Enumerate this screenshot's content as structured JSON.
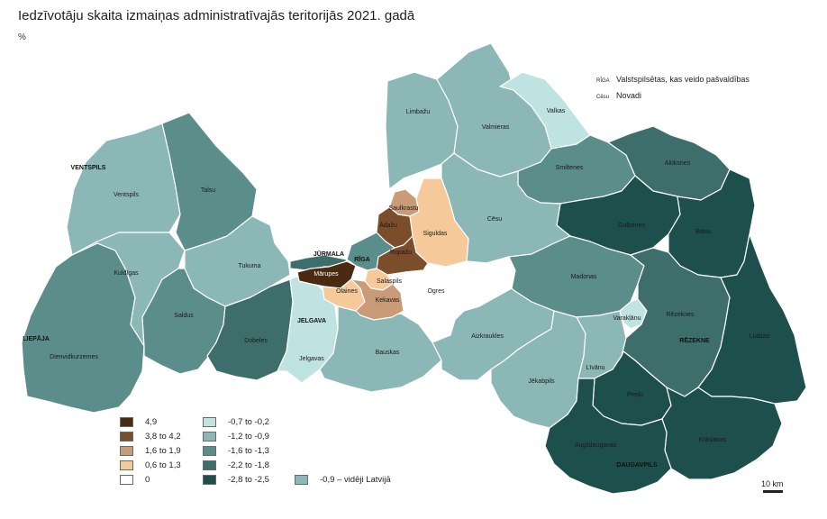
{
  "title": "Iedzīvotāju skaita izmaiņas administratīvajās teritorijās 2021. gadā",
  "unit": "%",
  "key": {
    "city_example": "RĪGA",
    "city_desc": "Valstspilsētas, kas veido pašvaldības",
    "region_example": "Cēsu",
    "region_desc": "Novadi"
  },
  "colors": {
    "c1": "#4b2a12",
    "c2": "#7b4d2a",
    "c3": "#c99b77",
    "c4": "#f5c99a",
    "c5": "#ffffff",
    "c6": "#bfe3e1",
    "c7": "#8bb8b6",
    "c8": "#5b8d8a",
    "c9": "#3e6e6b",
    "c10": "#1d4f4d",
    "avg": "#8bb8b6"
  },
  "legend": [
    {
      "label": "4,9",
      "color": "#4b2a12"
    },
    {
      "label": "3,8 to 4,2",
      "color": "#7b4d2a"
    },
    {
      "label": "1,6 to 1,9",
      "color": "#c99b77"
    },
    {
      "label": "0,6 to 1,3",
      "color": "#f5c99a"
    },
    {
      "label": "0",
      "color": "#ffffff"
    },
    {
      "label": "-0,7 to -0,2",
      "color": "#bfe3e1"
    },
    {
      "label": "-1,2 to -0,9",
      "color": "#8bb8b6"
    },
    {
      "label": "-1,6 to -1,3",
      "color": "#5b8d8a"
    },
    {
      "label": "-2,2 to -1,8",
      "color": "#3e6e6b"
    },
    {
      "label": "-2,8 to -2,5",
      "color": "#1d4f4d"
    },
    {
      "label": "-0,9 – vidēji Latvijā",
      "color": "#8bb8b6"
    }
  ],
  "regions": [
    {
      "name": "Ventspils"
    },
    {
      "name": "Talsu"
    },
    {
      "name": "Kuldīgas"
    },
    {
      "name": "Tukuma"
    },
    {
      "name": "Saldus"
    },
    {
      "name": "Dienvidkurzemes"
    },
    {
      "name": "Dobeles"
    },
    {
      "name": "Jelgavas"
    },
    {
      "name": "Bauskas"
    },
    {
      "name": "Limbažu"
    },
    {
      "name": "Valmieras"
    },
    {
      "name": "Valkas"
    },
    {
      "name": "Smiltenes"
    },
    {
      "name": "Alūksnes"
    },
    {
      "name": "Gulbenes"
    },
    {
      "name": "Balvu"
    },
    {
      "name": "Cēsu"
    },
    {
      "name": "Saulkrastu"
    },
    {
      "name": "Siguldas"
    },
    {
      "name": "Ādažu"
    },
    {
      "name": "Ropažu"
    },
    {
      "name": "Mārupes"
    },
    {
      "name": "Olaines"
    },
    {
      "name": "Salaspils"
    },
    {
      "name": "Ķekavas"
    },
    {
      "name": "Ogres"
    },
    {
      "name": "Madonas"
    },
    {
      "name": "Aizkraukles"
    },
    {
      "name": "Jēkabpils"
    },
    {
      "name": "Līvānu"
    },
    {
      "name": "Varakļānu"
    },
    {
      "name": "Rēzeknes"
    },
    {
      "name": "Ludzas"
    },
    {
      "name": "Preiļu"
    },
    {
      "name": "Krāslavas"
    },
    {
      "name": "Augšdaugavas"
    }
  ],
  "cities": [
    {
      "name": "VENTSPILS"
    },
    {
      "name": "LIEPĀJA"
    },
    {
      "name": "JŪRMALA"
    },
    {
      "name": "RĪGA"
    },
    {
      "name": "JELGAVA"
    },
    {
      "name": "RĒZEKNE"
    },
    {
      "name": "DAUGAVPILS"
    }
  ],
  "scale_label": "10 km"
}
